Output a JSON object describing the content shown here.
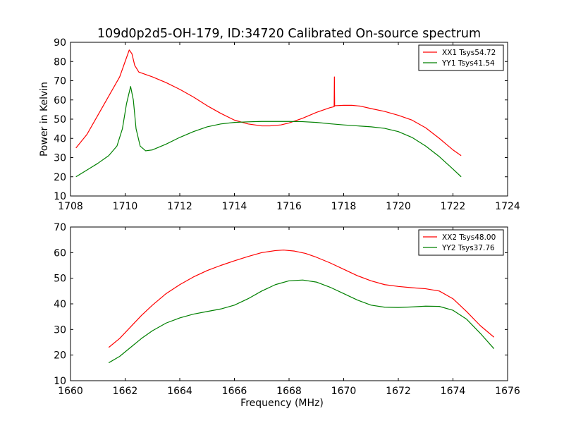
{
  "title": "109d0p2d5-OH-179, ID:34720 Calibrated On-source spectrum",
  "chart_data": [
    {
      "type": "line",
      "ylabel": "Power in Kelvin",
      "xlabel": "",
      "xlim": [
        1708,
        1724
      ],
      "ylim": [
        10,
        90
      ],
      "xticks": [
        1708,
        1710,
        1712,
        1714,
        1716,
        1718,
        1720,
        1722,
        1724
      ],
      "yticks": [
        10,
        20,
        30,
        40,
        50,
        60,
        70,
        80,
        90
      ],
      "legend_position": "top-right",
      "grid": false,
      "series": [
        {
          "name": "XX1 Tsys54.72",
          "color": "#ff0000",
          "x": [
            1708.2,
            1708.6,
            1709.0,
            1709.4,
            1709.8,
            1710.0,
            1710.15,
            1710.25,
            1710.35,
            1710.5,
            1710.7,
            1711.0,
            1711.5,
            1712.0,
            1712.5,
            1713.0,
            1713.5,
            1714.0,
            1714.5,
            1715.0,
            1715.3,
            1715.7,
            1716.0,
            1716.5,
            1717.0,
            1717.5,
            1717.65,
            1717.66,
            1717.67,
            1717.68,
            1718.0,
            1718.3,
            1718.6,
            1719.0,
            1719.5,
            1720.0,
            1720.5,
            1721.0,
            1721.5,
            1722.0,
            1722.3
          ],
          "y": [
            35,
            42,
            52,
            62,
            72,
            80,
            86,
            84,
            78,
            74.5,
            73.5,
            72,
            69,
            65.5,
            61.5,
            57,
            53,
            49.5,
            47.5,
            46.5,
            46.5,
            47,
            48,
            50.5,
            53.5,
            56,
            56.5,
            72,
            56.8,
            57,
            57.2,
            57.2,
            56.8,
            55.5,
            54,
            52,
            49.5,
            45.5,
            40,
            34,
            31
          ]
        },
        {
          "name": "YY1 Tsys41.54",
          "color": "#008000",
          "x": [
            1708.2,
            1708.6,
            1709.0,
            1709.4,
            1709.7,
            1709.9,
            1710.05,
            1710.2,
            1710.3,
            1710.4,
            1710.55,
            1710.75,
            1711.0,
            1711.5,
            1712.0,
            1712.5,
            1713.0,
            1713.5,
            1714.0,
            1714.5,
            1715.0,
            1715.5,
            1716.0,
            1716.5,
            1717.0,
            1717.5,
            1718.0,
            1718.5,
            1719.0,
            1719.5,
            1720.0,
            1720.5,
            1721.0,
            1721.5,
            1722.0,
            1722.3
          ],
          "y": [
            20,
            23.5,
            27,
            31,
            36,
            45,
            58,
            67,
            60,
            45,
            36,
            33.5,
            34,
            37,
            40.5,
            43.5,
            46,
            47.5,
            48.3,
            48.6,
            48.8,
            48.8,
            48.8,
            48.7,
            48.3,
            47.6,
            47,
            46.5,
            46,
            45.2,
            43.5,
            40.5,
            36,
            30.5,
            24,
            20
          ]
        }
      ]
    },
    {
      "type": "line",
      "ylabel": "",
      "xlabel": "Frequency (MHz)",
      "xlim": [
        1660,
        1676
      ],
      "ylim": [
        10,
        70
      ],
      "xticks": [
        1660,
        1662,
        1664,
        1666,
        1668,
        1670,
        1672,
        1674,
        1676
      ],
      "yticks": [
        10,
        20,
        30,
        40,
        50,
        60,
        70
      ],
      "legend_position": "top-right",
      "grid": false,
      "series": [
        {
          "name": "XX2 Tsys48.00",
          "color": "#ff0000",
          "x": [
            1661.4,
            1661.8,
            1662.2,
            1662.6,
            1663.0,
            1663.5,
            1664.0,
            1664.5,
            1665.0,
            1665.5,
            1666.0,
            1666.5,
            1667.0,
            1667.5,
            1667.8,
            1668.2,
            1668.6,
            1669.0,
            1669.5,
            1670.0,
            1670.5,
            1671.0,
            1671.5,
            1672.0,
            1672.5,
            1673.0,
            1673.5,
            1674.0,
            1674.5,
            1675.0,
            1675.5
          ],
          "y": [
            23,
            26.5,
            31,
            35.5,
            39.5,
            44,
            47.5,
            50.5,
            53,
            55,
            56.8,
            58.5,
            60,
            60.8,
            61,
            60.6,
            59.7,
            58.2,
            56,
            53.5,
            51,
            49,
            47.5,
            46.8,
            46.3,
            45.9,
            45,
            42,
            37,
            31.5,
            27
          ]
        },
        {
          "name": "YY2 Tsys37.76",
          "color": "#008000",
          "x": [
            1661.4,
            1661.8,
            1662.2,
            1662.6,
            1663.0,
            1663.5,
            1664.0,
            1664.5,
            1665.0,
            1665.5,
            1666.0,
            1666.5,
            1667.0,
            1667.5,
            1668.0,
            1668.5,
            1669.0,
            1669.5,
            1670.0,
            1670.5,
            1671.0,
            1671.5,
            1672.0,
            1672.5,
            1673.0,
            1673.5,
            1674.0,
            1674.5,
            1675.0,
            1675.5
          ],
          "y": [
            17,
            19.5,
            23,
            26.5,
            29.5,
            32.5,
            34.5,
            36,
            37,
            38,
            39.5,
            42,
            45,
            47.5,
            49,
            49.3,
            48.5,
            46.5,
            44,
            41.5,
            39.5,
            38.7,
            38.6,
            38.8,
            39.1,
            39,
            37.5,
            34,
            28.5,
            22.5
          ]
        }
      ]
    }
  ]
}
